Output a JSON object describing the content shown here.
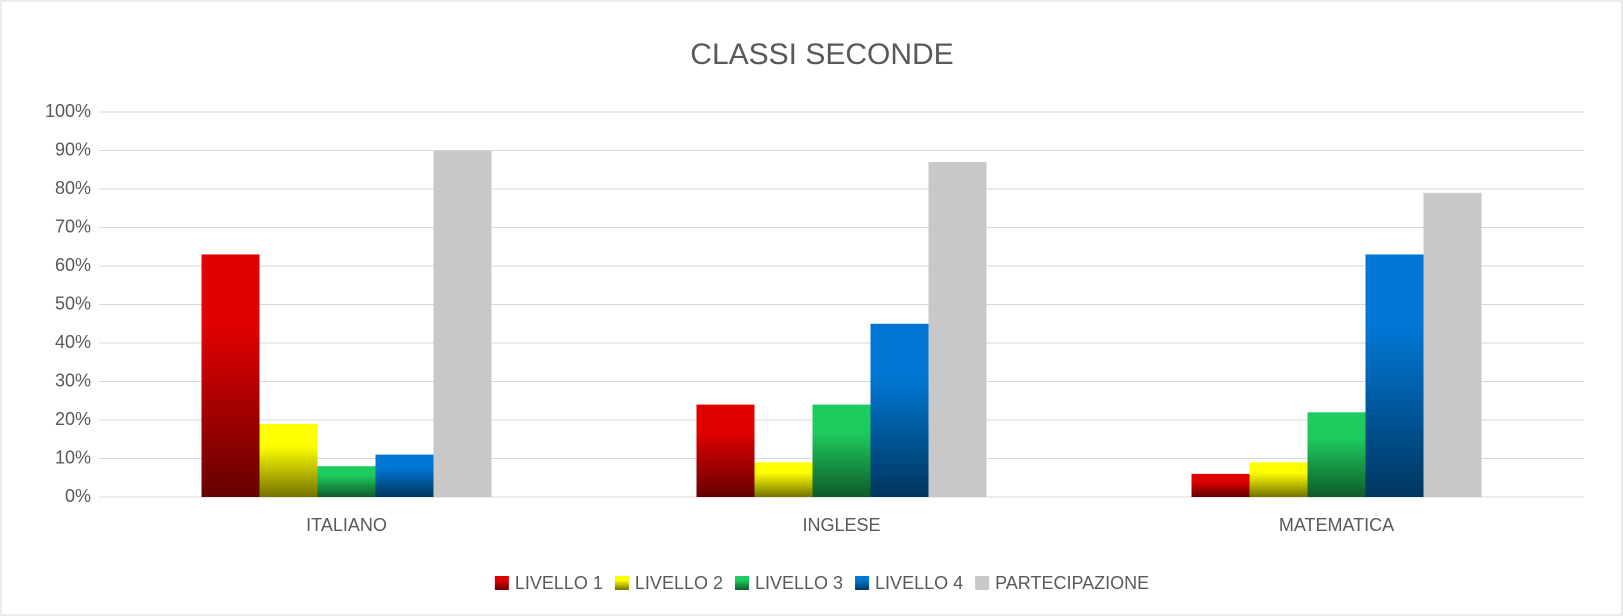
{
  "chart_data": {
    "type": "bar",
    "title": "CLASSI SECONDE",
    "categories": [
      "ITALIANO",
      "INGLESE",
      "MATEMATICA"
    ],
    "series": [
      {
        "name": "LIVELLO 1",
        "color": "#e00000",
        "values": [
          63,
          24,
          6
        ]
      },
      {
        "name": "LIVELLO 2",
        "color": "#ffff00",
        "values": [
          19,
          9,
          9
        ]
      },
      {
        "name": "LIVELLO 3",
        "color": "#1ecb5e",
        "values": [
          8,
          24,
          22
        ]
      },
      {
        "name": "LIVELLO 4",
        "color": "#0077d4",
        "values": [
          11,
          45,
          63
        ]
      },
      {
        "name": "PARTECIPAZIONE",
        "color": "#c8c8c8",
        "values": [
          90,
          87,
          79
        ]
      }
    ],
    "ylim": [
      0,
      100
    ],
    "yticks": [
      {
        "value": 0,
        "label": "0%"
      },
      {
        "value": 10,
        "label": "10%"
      },
      {
        "value": 20,
        "label": "20%"
      },
      {
        "value": 30,
        "label": "30%"
      },
      {
        "value": 40,
        "label": "40%"
      },
      {
        "value": 50,
        "label": "50%"
      },
      {
        "value": 60,
        "label": "60%"
      },
      {
        "value": 70,
        "label": "70%"
      },
      {
        "value": 80,
        "label": "80%"
      },
      {
        "value": 90,
        "label": "90%"
      },
      {
        "value": 100,
        "label": "100%"
      }
    ],
    "grid": true,
    "legend": "bottom"
  }
}
